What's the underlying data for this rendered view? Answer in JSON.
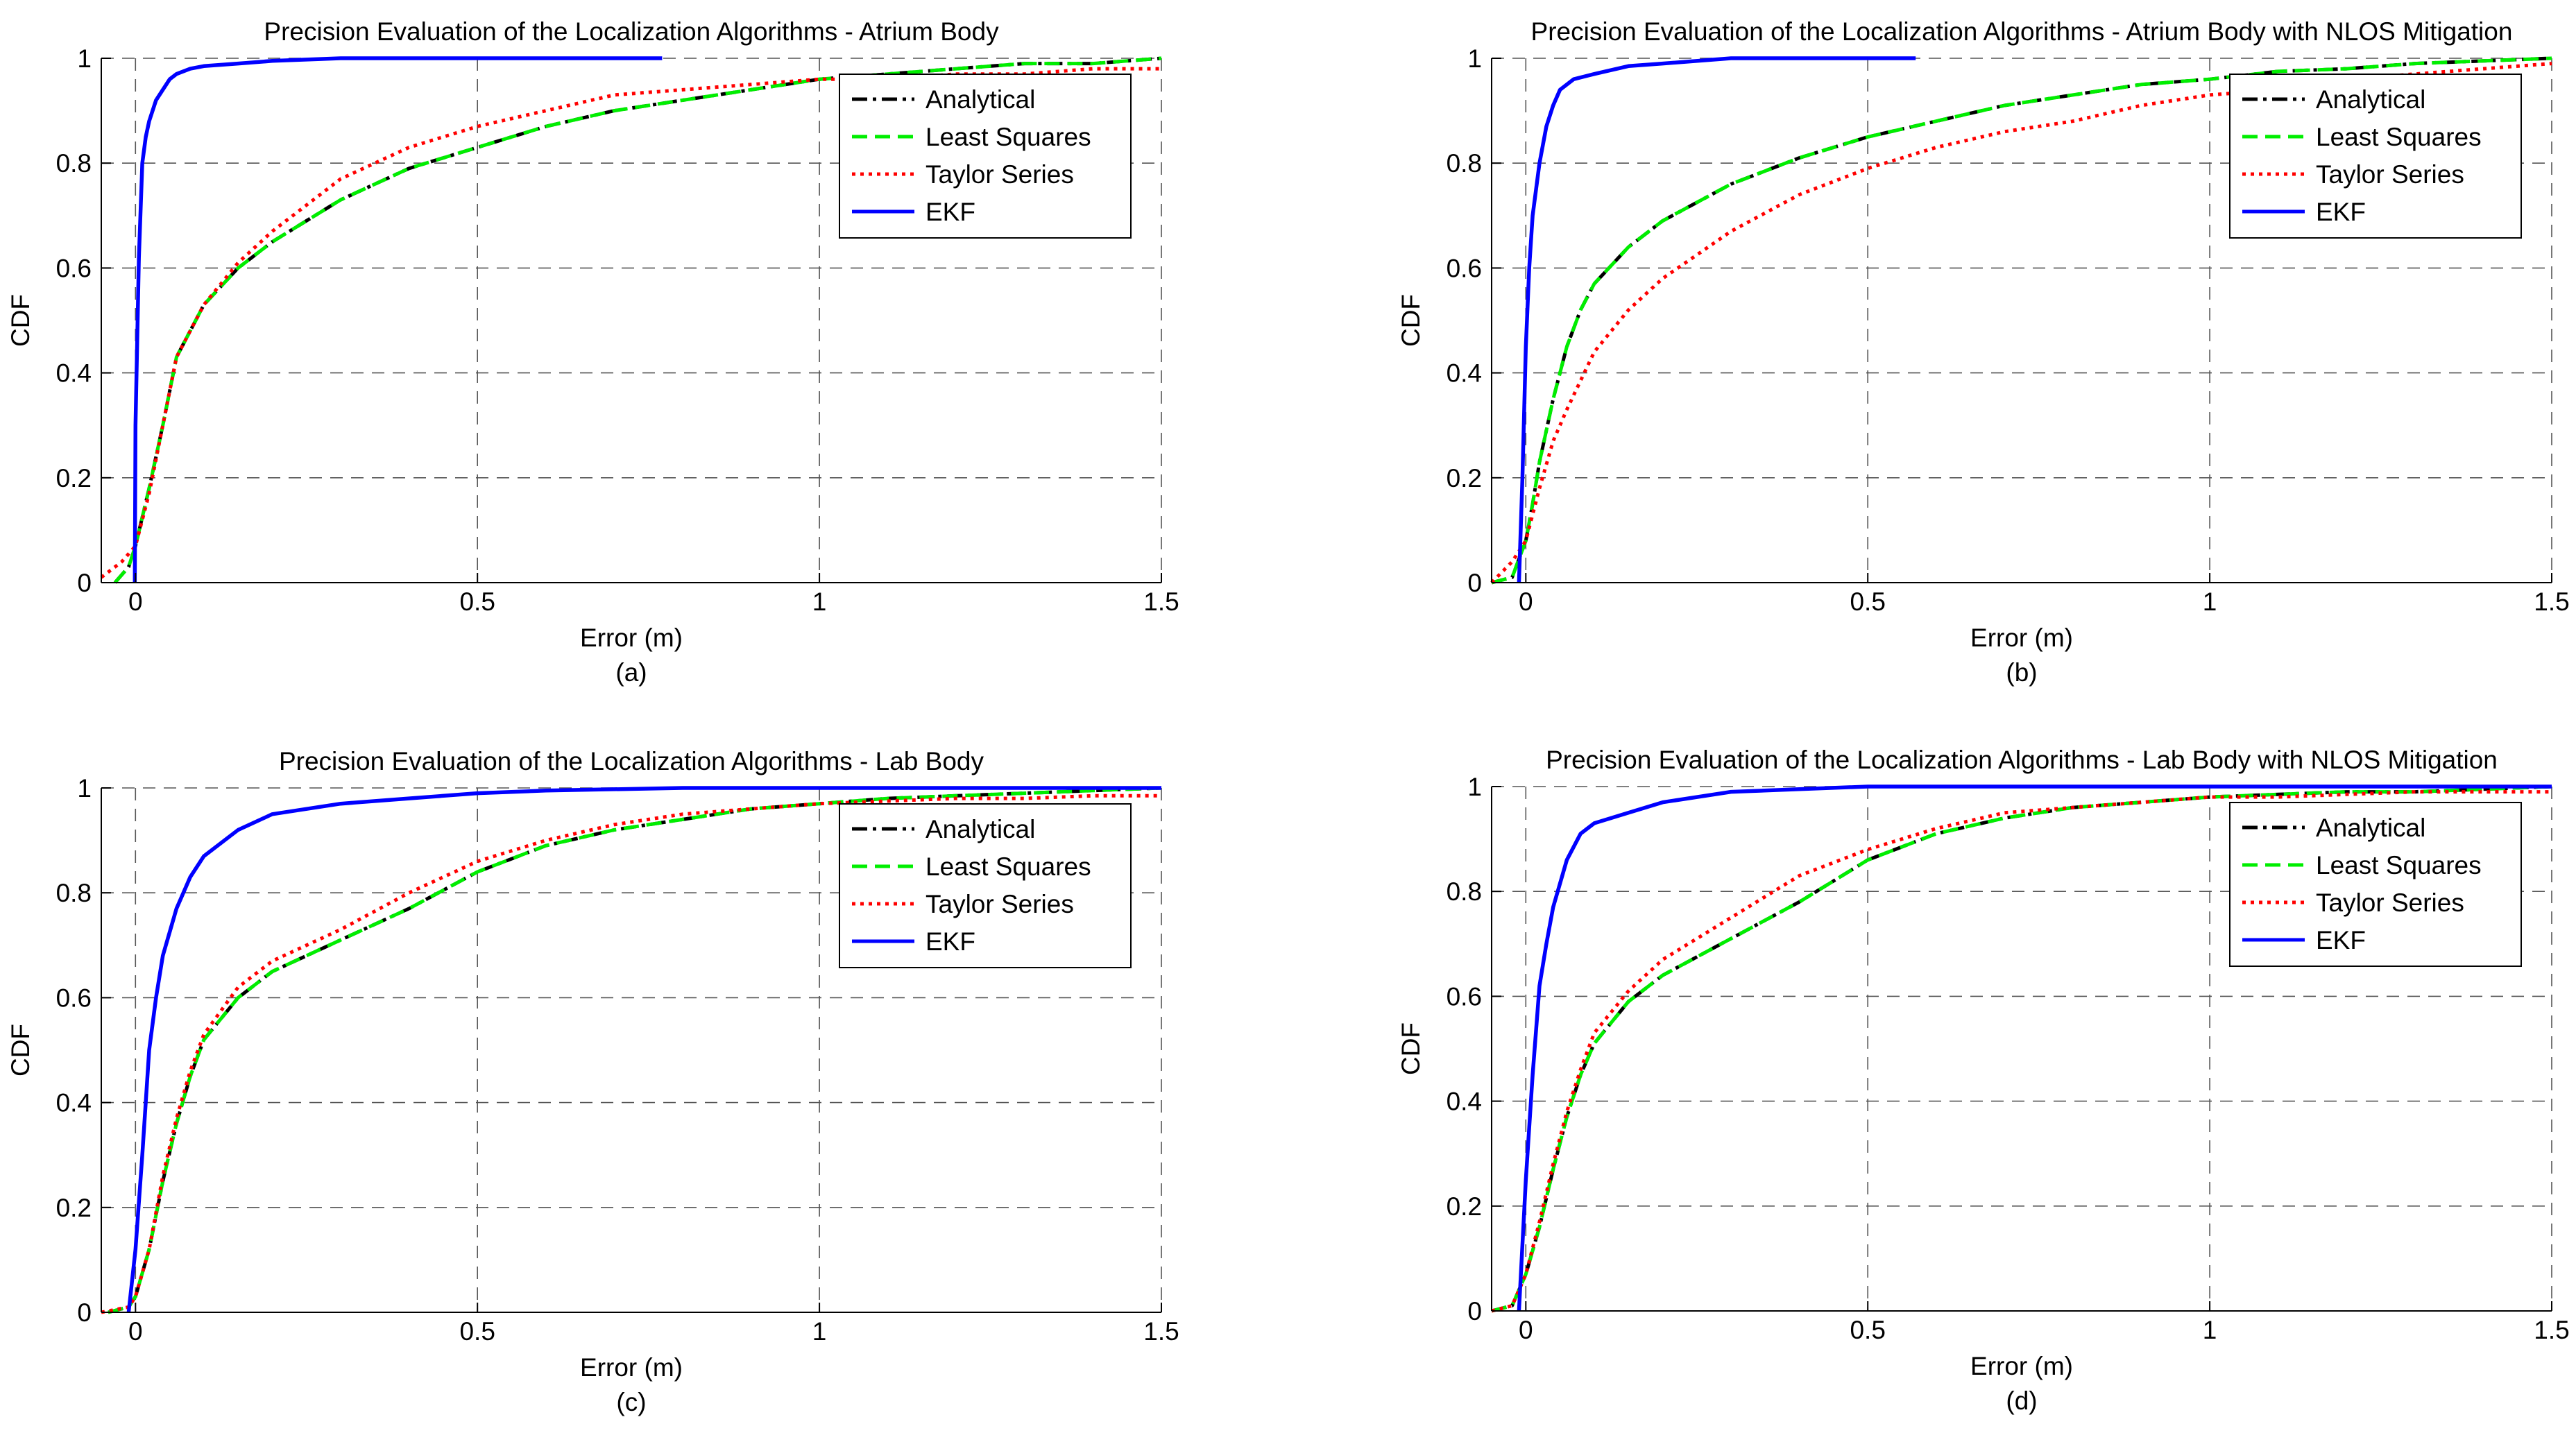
{
  "chart_data": [
    {
      "type": "line",
      "panel": "a",
      "title": "Precision Evaluation of the Localization Algorithms - Atrium Body",
      "xlabel": "Error (m)",
      "ylabel": "CDF",
      "caption": "(a)",
      "xlim": [
        -0.05,
        1.5
      ],
      "ylim": [
        0,
        1
      ],
      "xticks": [
        0,
        0.5,
        1,
        1.5
      ],
      "xtick_labels": [
        "0",
        "0.5",
        "1",
        "1.5"
      ],
      "yticks": [
        0,
        0.2,
        0.4,
        0.6,
        0.8,
        1
      ],
      "ytick_labels": [
        "0",
        "0.2",
        "0.4",
        "0.6",
        "0.8",
        "1"
      ],
      "grid": true,
      "legend_position": "top-right",
      "series": [
        {
          "name": "Analytical",
          "color": "#000000",
          "dash": "dashdot",
          "x": [
            -0.03,
            -0.01,
            0.0,
            0.02,
            0.04,
            0.06,
            0.1,
            0.15,
            0.2,
            0.3,
            0.4,
            0.5,
            0.6,
            0.7,
            0.8,
            0.9,
            1.0,
            1.1,
            1.2,
            1.3,
            1.4,
            1.5
          ],
          "y": [
            0.0,
            0.03,
            0.07,
            0.18,
            0.3,
            0.43,
            0.53,
            0.6,
            0.65,
            0.73,
            0.79,
            0.83,
            0.87,
            0.9,
            0.92,
            0.94,
            0.96,
            0.97,
            0.98,
            0.99,
            0.99,
            1.0
          ]
        },
        {
          "name": "Least Squares",
          "color": "#00ee00",
          "dash": "dash",
          "x": [
            -0.03,
            -0.01,
            0.0,
            0.02,
            0.04,
            0.06,
            0.1,
            0.15,
            0.2,
            0.3,
            0.4,
            0.5,
            0.6,
            0.7,
            0.8,
            0.9,
            1.0,
            1.1,
            1.2,
            1.3,
            1.4,
            1.5
          ],
          "y": [
            0.0,
            0.03,
            0.07,
            0.18,
            0.3,
            0.43,
            0.53,
            0.6,
            0.65,
            0.73,
            0.79,
            0.83,
            0.87,
            0.9,
            0.92,
            0.94,
            0.96,
            0.97,
            0.98,
            0.99,
            0.99,
            1.0
          ]
        },
        {
          "name": "Taylor Series",
          "color": "#ff0000",
          "dash": "dot",
          "x": [
            -0.05,
            -0.02,
            0.0,
            0.02,
            0.04,
            0.06,
            0.1,
            0.15,
            0.2,
            0.3,
            0.4,
            0.5,
            0.6,
            0.7,
            0.8,
            0.9,
            1.0,
            1.1,
            1.2,
            1.3,
            1.4,
            1.5
          ],
          "y": [
            0.01,
            0.04,
            0.07,
            0.17,
            0.3,
            0.43,
            0.53,
            0.61,
            0.67,
            0.77,
            0.83,
            0.87,
            0.9,
            0.93,
            0.94,
            0.95,
            0.96,
            0.96,
            0.97,
            0.97,
            0.98,
            0.98
          ]
        },
        {
          "name": "EKF",
          "color": "#0000ff",
          "dash": "solid",
          "x": [
            -0.001,
            0.0,
            0.005,
            0.01,
            0.015,
            0.02,
            0.03,
            0.04,
            0.05,
            0.06,
            0.08,
            0.1,
            0.15,
            0.2,
            0.3,
            0.5,
            0.77
          ],
          "y": [
            0.0,
            0.3,
            0.62,
            0.8,
            0.85,
            0.88,
            0.92,
            0.94,
            0.96,
            0.97,
            0.98,
            0.985,
            0.99,
            0.995,
            1.0,
            1.0,
            1.0
          ]
        }
      ]
    },
    {
      "type": "line",
      "panel": "b",
      "title": "Precision Evaluation of the Localization Algorithms - Atrium Body with NLOS Mitigation",
      "xlabel": "Error (m)",
      "ylabel": "CDF",
      "caption": "(b)",
      "xlim": [
        -0.05,
        1.5
      ],
      "ylim": [
        0,
        1
      ],
      "xticks": [
        0,
        0.5,
        1,
        1.5
      ],
      "xtick_labels": [
        "0",
        "0.5",
        "1",
        "1.5"
      ],
      "yticks": [
        0,
        0.2,
        0.4,
        0.6,
        0.8,
        1
      ],
      "ytick_labels": [
        "0",
        "0.2",
        "0.4",
        "0.6",
        "0.8",
        "1"
      ],
      "grid": true,
      "legend_position": "top-right",
      "series": [
        {
          "name": "Analytical",
          "color": "#000000",
          "dash": "dashdot",
          "x": [
            -0.05,
            -0.02,
            0.0,
            0.01,
            0.02,
            0.04,
            0.06,
            0.08,
            0.1,
            0.15,
            0.2,
            0.3,
            0.4,
            0.5,
            0.6,
            0.7,
            0.8,
            0.9,
            1.0,
            1.1,
            1.2,
            1.3,
            1.4,
            1.5
          ],
          "y": [
            0.0,
            0.01,
            0.08,
            0.15,
            0.23,
            0.35,
            0.45,
            0.52,
            0.57,
            0.64,
            0.69,
            0.76,
            0.81,
            0.85,
            0.88,
            0.91,
            0.93,
            0.95,
            0.96,
            0.975,
            0.98,
            0.99,
            0.995,
            1.0
          ]
        },
        {
          "name": "Least Squares",
          "color": "#00ee00",
          "dash": "dash",
          "x": [
            -0.05,
            -0.02,
            0.0,
            0.01,
            0.02,
            0.04,
            0.06,
            0.08,
            0.1,
            0.15,
            0.2,
            0.3,
            0.4,
            0.5,
            0.6,
            0.7,
            0.8,
            0.9,
            1.0,
            1.1,
            1.2,
            1.3,
            1.4,
            1.5
          ],
          "y": [
            0.0,
            0.01,
            0.08,
            0.15,
            0.23,
            0.35,
            0.45,
            0.52,
            0.57,
            0.64,
            0.69,
            0.76,
            0.81,
            0.85,
            0.88,
            0.91,
            0.93,
            0.95,
            0.96,
            0.975,
            0.98,
            0.99,
            0.995,
            1.0
          ]
        },
        {
          "name": "Taylor Series",
          "color": "#ff0000",
          "dash": "dot",
          "x": [
            -0.05,
            -0.02,
            0.0,
            0.02,
            0.04,
            0.06,
            0.1,
            0.15,
            0.2,
            0.3,
            0.4,
            0.5,
            0.6,
            0.7,
            0.8,
            0.9,
            1.0,
            1.1,
            1.2,
            1.3,
            1.4,
            1.5
          ],
          "y": [
            0.0,
            0.04,
            0.08,
            0.18,
            0.27,
            0.33,
            0.44,
            0.52,
            0.58,
            0.67,
            0.74,
            0.79,
            0.83,
            0.86,
            0.88,
            0.91,
            0.93,
            0.94,
            0.96,
            0.97,
            0.98,
            0.99
          ]
        },
        {
          "name": "EKF",
          "color": "#0000ff",
          "dash": "solid",
          "x": [
            -0.01,
            -0.005,
            0.0,
            0.005,
            0.01,
            0.02,
            0.03,
            0.04,
            0.05,
            0.07,
            0.1,
            0.15,
            0.2,
            0.3,
            0.4,
            0.57
          ],
          "y": [
            0.0,
            0.2,
            0.45,
            0.6,
            0.7,
            0.8,
            0.87,
            0.91,
            0.94,
            0.96,
            0.97,
            0.985,
            0.99,
            1.0,
            1.0,
            1.0
          ]
        }
      ]
    },
    {
      "type": "line",
      "panel": "c",
      "title": "Precision Evaluation of the Localization Algorithms - Lab Body",
      "xlabel": "Error (m)",
      "ylabel": "CDF",
      "caption": "(c)",
      "xlim": [
        -0.05,
        1.5
      ],
      "ylim": [
        0,
        1
      ],
      "xticks": [
        0,
        0.5,
        1,
        1.5
      ],
      "xtick_labels": [
        "0",
        "0.5",
        "1",
        "1.5"
      ],
      "yticks": [
        0,
        0.2,
        0.4,
        0.6,
        0.8,
        1
      ],
      "ytick_labels": [
        "0",
        "0.2",
        "0.4",
        "0.6",
        "0.8",
        "1"
      ],
      "grid": true,
      "legend_position": "top-right",
      "series": [
        {
          "name": "Analytical",
          "color": "#000000",
          "dash": "dashdot",
          "x": [
            -0.04,
            -0.01,
            0.0,
            0.02,
            0.04,
            0.06,
            0.08,
            0.1,
            0.15,
            0.2,
            0.3,
            0.4,
            0.5,
            0.6,
            0.7,
            0.8,
            0.9,
            1.0,
            1.1,
            1.2,
            1.3,
            1.4,
            1.5
          ],
          "y": [
            0.0,
            0.01,
            0.03,
            0.12,
            0.25,
            0.36,
            0.45,
            0.52,
            0.6,
            0.65,
            0.71,
            0.77,
            0.84,
            0.89,
            0.92,
            0.94,
            0.96,
            0.97,
            0.98,
            0.985,
            0.99,
            0.995,
            1.0
          ]
        },
        {
          "name": "Least Squares",
          "color": "#00ee00",
          "dash": "dash",
          "x": [
            -0.04,
            -0.01,
            0.0,
            0.02,
            0.04,
            0.06,
            0.08,
            0.1,
            0.15,
            0.2,
            0.3,
            0.4,
            0.5,
            0.6,
            0.7,
            0.8,
            0.9,
            1.0,
            1.1,
            1.2,
            1.3,
            1.4,
            1.5
          ],
          "y": [
            0.0,
            0.01,
            0.03,
            0.12,
            0.25,
            0.36,
            0.45,
            0.52,
            0.6,
            0.65,
            0.71,
            0.77,
            0.84,
            0.89,
            0.92,
            0.94,
            0.96,
            0.97,
            0.98,
            0.985,
            0.99,
            0.995,
            1.0
          ]
        },
        {
          "name": "Taylor Series",
          "color": "#ff0000",
          "dash": "dot",
          "x": [
            -0.05,
            -0.01,
            0.0,
            0.02,
            0.04,
            0.06,
            0.08,
            0.1,
            0.15,
            0.2,
            0.3,
            0.4,
            0.5,
            0.6,
            0.7,
            0.8,
            0.9,
            1.0,
            1.1,
            1.2,
            1.3,
            1.4,
            1.5
          ],
          "y": [
            0.0,
            0.01,
            0.03,
            0.12,
            0.26,
            0.37,
            0.46,
            0.53,
            0.62,
            0.67,
            0.73,
            0.8,
            0.86,
            0.9,
            0.93,
            0.95,
            0.96,
            0.97,
            0.975,
            0.98,
            0.98,
            0.985,
            0.985
          ]
        },
        {
          "name": "EKF",
          "color": "#0000ff",
          "dash": "solid",
          "x": [
            -0.01,
            0.0,
            0.01,
            0.02,
            0.03,
            0.04,
            0.06,
            0.08,
            0.1,
            0.15,
            0.2,
            0.3,
            0.4,
            0.5,
            0.6,
            0.8,
            1.0,
            1.5
          ],
          "y": [
            0.0,
            0.12,
            0.3,
            0.5,
            0.6,
            0.68,
            0.77,
            0.83,
            0.87,
            0.92,
            0.95,
            0.97,
            0.98,
            0.99,
            0.995,
            1.0,
            1.0,
            1.0
          ]
        }
      ]
    },
    {
      "type": "line",
      "panel": "d",
      "title": "Precision Evaluation of the Localization Algorithms - Lab Body with NLOS Mitigation",
      "xlabel": "Error (m)",
      "ylabel": "CDF",
      "caption": "(d)",
      "xlim": [
        -0.05,
        1.5
      ],
      "ylim": [
        0,
        1
      ],
      "xticks": [
        0,
        0.5,
        1,
        1.5
      ],
      "xtick_labels": [
        "0",
        "0.5",
        "1",
        "1.5"
      ],
      "yticks": [
        0,
        0.2,
        0.4,
        0.6,
        0.8,
        1
      ],
      "ytick_labels": [
        "0",
        "0.2",
        "0.4",
        "0.6",
        "0.8",
        "1"
      ],
      "grid": true,
      "legend_position": "top-right",
      "series": [
        {
          "name": "Analytical",
          "color": "#000000",
          "dash": "dashdot",
          "x": [
            -0.05,
            -0.02,
            0.0,
            0.02,
            0.04,
            0.06,
            0.08,
            0.1,
            0.15,
            0.2,
            0.3,
            0.4,
            0.5,
            0.6,
            0.7,
            0.8,
            0.9,
            1.0,
            1.1,
            1.2,
            1.3,
            1.4,
            1.5
          ],
          "y": [
            0.0,
            0.01,
            0.07,
            0.16,
            0.27,
            0.37,
            0.45,
            0.51,
            0.59,
            0.64,
            0.71,
            0.78,
            0.86,
            0.91,
            0.94,
            0.96,
            0.97,
            0.98,
            0.985,
            0.99,
            0.99,
            0.995,
            1.0
          ]
        },
        {
          "name": "Least Squares",
          "color": "#00ee00",
          "dash": "dash",
          "x": [
            -0.05,
            -0.02,
            0.0,
            0.02,
            0.04,
            0.06,
            0.08,
            0.1,
            0.15,
            0.2,
            0.3,
            0.4,
            0.5,
            0.6,
            0.7,
            0.8,
            0.9,
            1.0,
            1.1,
            1.2,
            1.3,
            1.4,
            1.5
          ],
          "y": [
            0.0,
            0.01,
            0.07,
            0.16,
            0.27,
            0.37,
            0.45,
            0.51,
            0.59,
            0.64,
            0.71,
            0.78,
            0.86,
            0.91,
            0.94,
            0.96,
            0.97,
            0.98,
            0.985,
            0.99,
            0.99,
            0.995,
            1.0
          ]
        },
        {
          "name": "Taylor Series",
          "color": "#ff0000",
          "dash": "dot",
          "x": [
            -0.05,
            -0.02,
            0.0,
            0.02,
            0.04,
            0.06,
            0.08,
            0.1,
            0.15,
            0.2,
            0.3,
            0.4,
            0.5,
            0.6,
            0.7,
            0.8,
            0.9,
            1.0,
            1.1,
            1.2,
            1.3,
            1.4,
            1.5
          ],
          "y": [
            0.0,
            0.01,
            0.07,
            0.17,
            0.28,
            0.38,
            0.46,
            0.53,
            0.61,
            0.67,
            0.75,
            0.83,
            0.88,
            0.92,
            0.95,
            0.96,
            0.97,
            0.98,
            0.98,
            0.985,
            0.99,
            0.99,
            0.99
          ]
        },
        {
          "name": "EKF",
          "color": "#0000ff",
          "dash": "solid",
          "x": [
            -0.01,
            0.0,
            0.01,
            0.02,
            0.03,
            0.04,
            0.06,
            0.08,
            0.1,
            0.15,
            0.2,
            0.3,
            0.4,
            0.5,
            0.8,
            1.0,
            1.5
          ],
          "y": [
            0.0,
            0.25,
            0.45,
            0.62,
            0.7,
            0.77,
            0.86,
            0.91,
            0.93,
            0.95,
            0.97,
            0.99,
            0.995,
            1.0,
            1.0,
            1.0,
            1.0
          ]
        }
      ]
    }
  ]
}
